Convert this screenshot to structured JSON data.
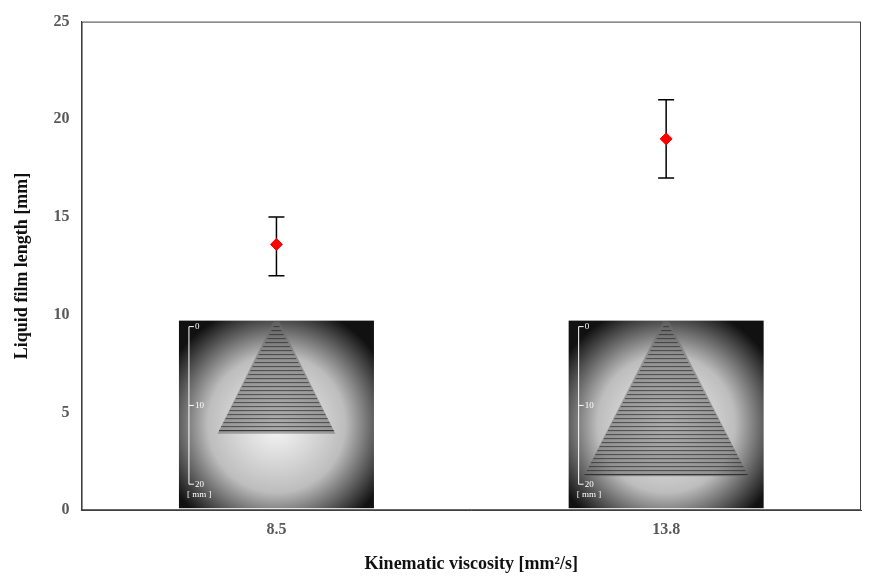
{
  "chart_data": {
    "type": "scatter",
    "x_label": "Kinematic viscosity [mm²/s]",
    "y_label": "Liquid film length [mm]",
    "categories": [
      "8.5",
      "13.8"
    ],
    "values": [
      13.6,
      19
    ],
    "error_low": [
      12,
      17
    ],
    "error_high": [
      15,
      21
    ],
    "color": "#ff0000",
    "marker": "diamond",
    "ylim": [
      0,
      25
    ],
    "yticks": [
      0,
      5,
      10,
      15,
      20,
      25
    ],
    "grid": false,
    "inset_scale": {
      "ticks": [
        0,
        10,
        20
      ],
      "label": "[ mm ]"
    }
  }
}
